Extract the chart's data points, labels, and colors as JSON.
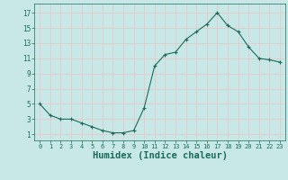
{
  "x": [
    0,
    1,
    2,
    3,
    4,
    5,
    6,
    7,
    8,
    9,
    10,
    11,
    12,
    13,
    14,
    15,
    16,
    17,
    18,
    19,
    20,
    21,
    22,
    23
  ],
  "y": [
    5,
    3.5,
    3,
    3,
    2.5,
    2,
    1.5,
    1.2,
    1.2,
    1.5,
    4.5,
    10,
    11.5,
    11.8,
    13.5,
    14.5,
    15.5,
    17,
    15.3,
    14.5,
    12.5,
    11,
    10.8,
    10.5
  ],
  "line_color": "#1a6b5a",
  "marker": "+",
  "marker_color": "#1a6b5a",
  "bg_color": "#c8e8e8",
  "grid_color": "#e8c8c8",
  "xlabel": "Humidex (Indice chaleur)",
  "xlabel_fontsize": 7.5,
  "tick_color": "#1a6b5a",
  "label_color": "#1a6b5a",
  "yticks": [
    1,
    3,
    5,
    7,
    9,
    11,
    13,
    15,
    17
  ],
  "ylim": [
    0.2,
    18.2
  ],
  "xlim": [
    -0.5,
    23.5
  ],
  "xticks": [
    0,
    1,
    2,
    3,
    4,
    5,
    6,
    7,
    8,
    9,
    10,
    11,
    12,
    13,
    14,
    15,
    16,
    17,
    18,
    19,
    20,
    21,
    22,
    23
  ]
}
